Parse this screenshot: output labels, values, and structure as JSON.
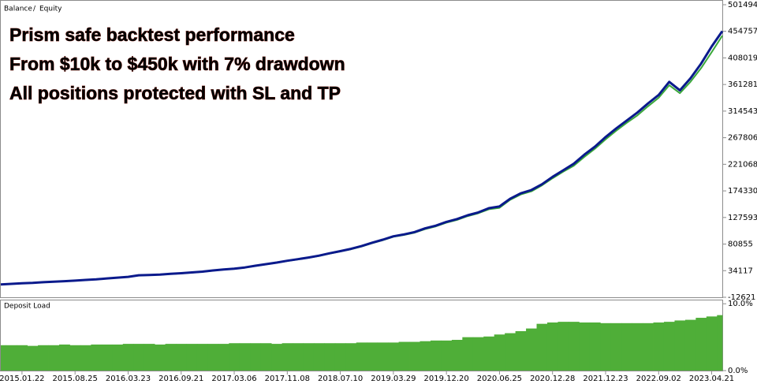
{
  "chart_data": [
    {
      "type": "line",
      "legend_separator": "/",
      "annotations": [
        "Prism safe backtest performance",
        "From $10k to $450k with 7% drawdown",
        "All positions protected with SL and TP"
      ],
      "annotation_color": "#e0402e",
      "categories": [
        null,
        null,
        "2015.01.22",
        null,
        null,
        null,
        null,
        "2015.08.25",
        null,
        null,
        null,
        null,
        "2016.03.23",
        null,
        null,
        null,
        null,
        "2016.09.21",
        null,
        null,
        null,
        null,
        "2017.03.06",
        null,
        null,
        null,
        null,
        "2017.11.08",
        null,
        null,
        null,
        null,
        "2018.07.10",
        null,
        null,
        null,
        null,
        "2019.03.29",
        null,
        null,
        null,
        null,
        "2019.12.20",
        null,
        null,
        null,
        null,
        "2020.06.25",
        null,
        null,
        null,
        null,
        "2020.12.28",
        null,
        null,
        null,
        null,
        "2021.12.23",
        null,
        null,
        null,
        null,
        "2022.09.02",
        null,
        null,
        null,
        null,
        "2023.04.21",
        null
      ],
      "series": [
        {
          "name": "Balance",
          "color": "#0a1a8c",
          "values": [
            10000,
            11000,
            12100,
            12800,
            13800,
            14700,
            15700,
            16600,
            17800,
            18900,
            20500,
            21900,
            23300,
            26000,
            26500,
            27200,
            28500,
            29600,
            31000,
            32400,
            34500,
            36300,
            37600,
            39800,
            42800,
            45600,
            48400,
            51600,
            54300,
            57200,
            60500,
            64700,
            68500,
            72400,
            77300,
            83200,
            88500,
            94500,
            97800,
            102000,
            108500,
            113200,
            119800,
            124800,
            131500,
            136500,
            144000,
            147000,
            160500,
            170000,
            175800,
            186000,
            199000,
            210500,
            222000,
            238000,
            252000,
            269000,
            284000,
            298000,
            312000,
            328000,
            343000,
            366000,
            351000,
            372000,
            398000,
            428000,
            455000
          ]
        },
        {
          "name": "Equity",
          "color": "#3aa83a",
          "values": [
            10000,
            10800,
            12000,
            12700,
            13600,
            14600,
            15500,
            16500,
            17600,
            18800,
            20300,
            21700,
            23100,
            25600,
            26300,
            27000,
            28300,
            29400,
            30700,
            32200,
            34200,
            36000,
            37300,
            39500,
            42400,
            45200,
            48000,
            51100,
            53900,
            56800,
            60000,
            64100,
            67900,
            71800,
            76500,
            82400,
            87600,
            93600,
            96800,
            100900,
            107300,
            112000,
            118500,
            123300,
            130000,
            135000,
            142000,
            144500,
            158500,
            168000,
            173500,
            184000,
            196500,
            208000,
            218500,
            234000,
            248500,
            265000,
            280000,
            294000,
            307000,
            323000,
            338000,
            360000,
            346000,
            366000,
            390000,
            418000,
            447000
          ]
        }
      ],
      "ylim": [
        -12621,
        508400
      ],
      "yticks": [
        501494,
        454757,
        408019,
        361281,
        314543,
        267806,
        221068,
        174330,
        127593,
        80855,
        34117,
        -12621
      ]
    },
    {
      "type": "bar",
      "title": "Deposit Load",
      "color": "#4fae38",
      "values": [
        3.8,
        3.8,
        3.8,
        3.7,
        3.8,
        3.8,
        3.9,
        3.8,
        3.8,
        3.9,
        3.9,
        3.9,
        4.0,
        4.0,
        4.0,
        3.9,
        4.0,
        4.0,
        4.0,
        4.0,
        4.0,
        4.0,
        4.1,
        4.1,
        4.1,
        4.1,
        4.0,
        4.1,
        4.1,
        4.1,
        4.1,
        4.1,
        4.1,
        4.1,
        4.2,
        4.2,
        4.2,
        4.2,
        4.3,
        4.3,
        4.4,
        4.5,
        4.5,
        4.6,
        5.0,
        5.0,
        5.1,
        5.4,
        5.6,
        5.9,
        6.3,
        7.0,
        7.2,
        7.3,
        7.3,
        7.2,
        7.2,
        7.1,
        7.1,
        7.1,
        7.1,
        7.1,
        7.2,
        7.3,
        7.5,
        7.6,
        7.9,
        8.1,
        8.3
      ],
      "ylim": [
        0,
        10.5
      ],
      "yticks": [
        {
          "value": 10,
          "label": "10.0%"
        },
        {
          "value": 0,
          "label": "0.0%"
        }
      ]
    }
  ]
}
